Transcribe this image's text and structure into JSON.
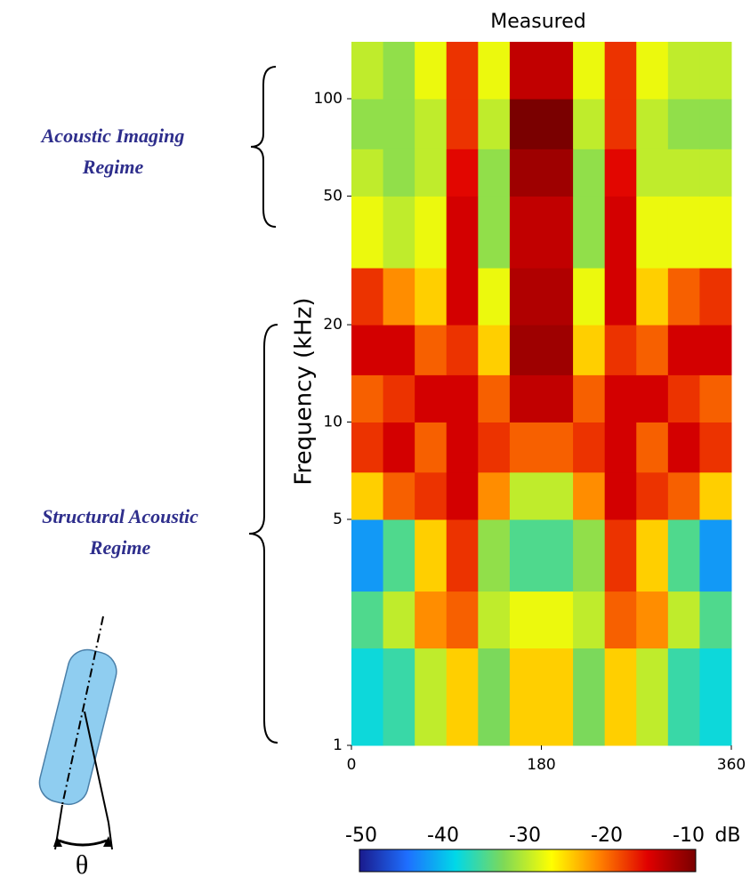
{
  "chart_data": {
    "type": "heatmap",
    "title": "Measured",
    "ylabel": "Frequency (kHz)",
    "yscale": "log",
    "xlim": [
      0,
      360
    ],
    "xticks": [
      0,
      180,
      360
    ],
    "ylim": [
      1,
      150
    ],
    "yticks": [
      1,
      5,
      10,
      20,
      50,
      100
    ],
    "x_edges": [
      0,
      30,
      60,
      90,
      120,
      150,
      180,
      210,
      240,
      270,
      300,
      330,
      360
    ],
    "y_edges": [
      1,
      2,
      3,
      5,
      7,
      10,
      14,
      20,
      30,
      50,
      70,
      100,
      150
    ],
    "z": [
      [
        -38,
        -36,
        -30,
        -25,
        -33,
        -25,
        -25,
        -33,
        -25,
        -30,
        -36,
        -38
      ],
      [
        -35,
        -30,
        -22,
        -20,
        -30,
        -28,
        -28,
        -30,
        -20,
        -22,
        -30,
        -35
      ],
      [
        -42,
        -35,
        -25,
        -18,
        -32,
        -35,
        -35,
        -32,
        -18,
        -25,
        -35,
        -42
      ],
      [
        -25,
        -20,
        -18,
        -15,
        -22,
        -30,
        -30,
        -22,
        -15,
        -18,
        -20,
        -25
      ],
      [
        -18,
        -15,
        -20,
        -15,
        -18,
        -20,
        -20,
        -18,
        -15,
        -20,
        -15,
        -18
      ],
      [
        -20,
        -18,
        -15,
        -15,
        -20,
        -14,
        -14,
        -20,
        -15,
        -15,
        -18,
        -20
      ],
      [
        -15,
        -15,
        -20,
        -18,
        -25,
        -12,
        -12,
        -25,
        -18,
        -20,
        -15,
        -15
      ],
      [
        -18,
        -22,
        -25,
        -15,
        -28,
        -13,
        -13,
        -28,
        -15,
        -25,
        -20,
        -18
      ],
      [
        -28,
        -30,
        -28,
        -15,
        -32,
        -14,
        -14,
        -32,
        -15,
        -28,
        -28,
        -28
      ],
      [
        -30,
        -32,
        -30,
        -16,
        -32,
        -12,
        -12,
        -32,
        -16,
        -30,
        -30,
        -30
      ],
      [
        -32,
        -32,
        -30,
        -18,
        -30,
        -10,
        -10,
        -30,
        -18,
        -30,
        -32,
        -32
      ],
      [
        -30,
        -32,
        -28,
        -18,
        -28,
        -14,
        -14,
        -28,
        -18,
        -28,
        -30,
        -30
      ]
    ],
    "clim": [
      -50,
      -10
    ],
    "cticks": [
      -50,
      -40,
      -30,
      -20,
      -10
    ],
    "clabel": "dB",
    "colormap": [
      "#1a1a8c",
      "#1e6fff",
      "#00d8e8",
      "#7ed957",
      "#ffff00",
      "#ff8000",
      "#e00000",
      "#7a0000"
    ],
    "annotations": [
      [
        "Acoustic Imaging",
        "Regime"
      ],
      [
        "Structural Acoustic",
        "Regime"
      ]
    ],
    "angle_symbol": "θ"
  }
}
